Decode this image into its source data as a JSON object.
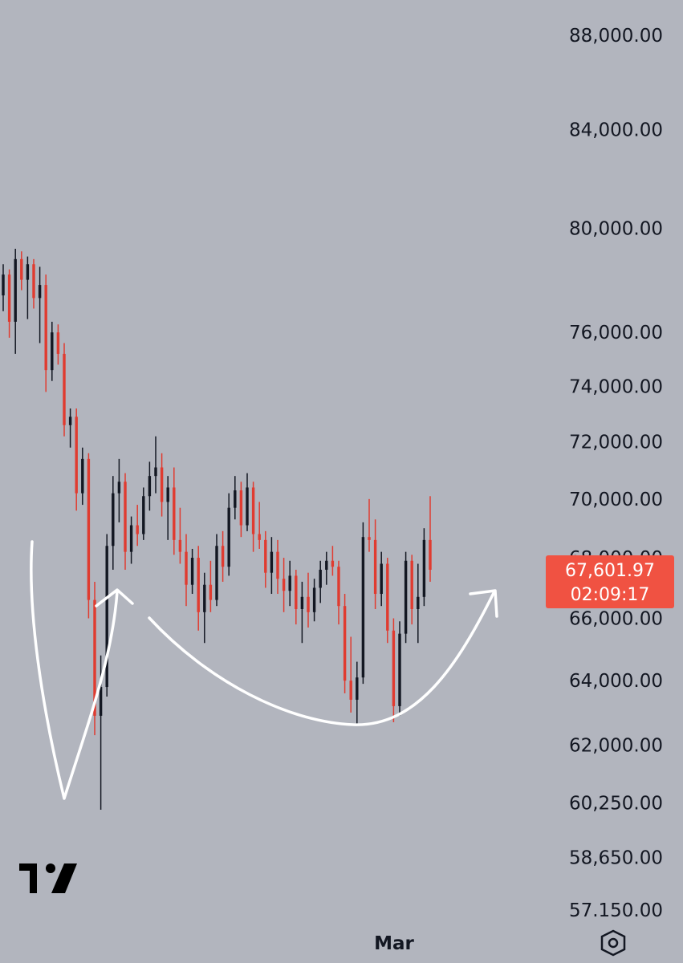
{
  "chart_data": {
    "type": "candlestick",
    "y_axis": {
      "scale": "log",
      "tick_labels": [
        "88,000.00",
        "84,000.00",
        "80,000.00",
        "76,000.00",
        "74,000.00",
        "72,000.00",
        "70,000.00",
        "68,000.00",
        "66,000.00",
        "64,000.00",
        "62,000.00",
        "60,250.00",
        "58,650.00",
        "57.150.00"
      ],
      "tick_values": [
        88000,
        84000,
        80000,
        76000,
        74000,
        72000,
        70000,
        68000,
        66000,
        64000,
        62000,
        60250,
        58650,
        57150
      ]
    },
    "x_axis": {
      "tick_labels": [
        "Mar"
      ]
    },
    "grid": false,
    "last_price": {
      "value": "67,601.97",
      "countdown": "02:09:17"
    },
    "colors": {
      "up": "#131722",
      "down": "#e03b30",
      "badge": "#f05242",
      "annotation": "#ffffff"
    },
    "candles_ohlc": [
      [
        77400,
        78600,
        76800,
        78200
      ],
      [
        78200,
        78400,
        75800,
        76400
      ],
      [
        76400,
        79200,
        75200,
        78800
      ],
      [
        78800,
        79100,
        77600,
        78000
      ],
      [
        78000,
        78900,
        76500,
        78600
      ],
      [
        78600,
        78800,
        76900,
        77300
      ],
      [
        77300,
        78500,
        75600,
        77800
      ],
      [
        77800,
        78200,
        73800,
        74600
      ],
      [
        74600,
        76400,
        74200,
        76000
      ],
      [
        76000,
        76300,
        74800,
        75200
      ],
      [
        75200,
        75600,
        72200,
        72600
      ],
      [
        72600,
        73200,
        71800,
        72900
      ],
      [
        72900,
        73200,
        69600,
        70200
      ],
      [
        70200,
        71800,
        69800,
        71400
      ],
      [
        71400,
        71600,
        66000,
        66600
      ],
      [
        66600,
        67200,
        62300,
        62900
      ],
      [
        62900,
        64800,
        60050,
        63800
      ],
      [
        63800,
        68800,
        63500,
        68400
      ],
      [
        68400,
        70800,
        67600,
        70200
      ],
      [
        70200,
        71400,
        69200,
        70600
      ],
      [
        70600,
        70900,
        67600,
        68200
      ],
      [
        68200,
        69400,
        67800,
        69100
      ],
      [
        69100,
        69800,
        68400,
        68800
      ],
      [
        68800,
        70400,
        68600,
        70100
      ],
      [
        70100,
        71300,
        69600,
        70800
      ],
      [
        70800,
        72200,
        70200,
        71100
      ],
      [
        71100,
        71600,
        69400,
        69900
      ],
      [
        69900,
        70800,
        68600,
        70400
      ],
      [
        70400,
        71100,
        68100,
        68600
      ],
      [
        68600,
        69700,
        67800,
        68200
      ],
      [
        68200,
        68800,
        66400,
        67100
      ],
      [
        67100,
        68300,
        66800,
        68000
      ],
      [
        68000,
        68400,
        65600,
        66200
      ],
      [
        66200,
        67500,
        65200,
        67100
      ],
      [
        67100,
        67900,
        66200,
        66600
      ],
      [
        66600,
        68800,
        66400,
        68400
      ],
      [
        68400,
        68900,
        67200,
        67700
      ],
      [
        67700,
        70200,
        67400,
        69700
      ],
      [
        69700,
        70800,
        69300,
        70300
      ],
      [
        70300,
        70600,
        68700,
        69100
      ],
      [
        69100,
        70900,
        68900,
        70400
      ],
      [
        70400,
        70600,
        68200,
        68800
      ],
      [
        68800,
        69900,
        68300,
        68600
      ],
      [
        68600,
        68900,
        67000,
        67500
      ],
      [
        67500,
        68700,
        66800,
        68200
      ],
      [
        68200,
        68600,
        66800,
        67300
      ],
      [
        67300,
        68000,
        66200,
        66900
      ],
      [
        66900,
        67900,
        66400,
        67400
      ],
      [
        67400,
        67600,
        65800,
        66300
      ],
      [
        66300,
        67200,
        65200,
        66700
      ],
      [
        66700,
        67500,
        65700,
        66200
      ],
      [
        66200,
        67300,
        65900,
        67000
      ],
      [
        67000,
        67900,
        66500,
        67600
      ],
      [
        67600,
        68200,
        67100,
        67900
      ],
      [
        67900,
        68400,
        67400,
        67700
      ],
      [
        67700,
        67900,
        65800,
        66400
      ],
      [
        66400,
        66800,
        63600,
        64000
      ],
      [
        64000,
        65400,
        63000,
        63400
      ],
      [
        63400,
        64600,
        62600,
        64100
      ],
      [
        64100,
        69200,
        63900,
        68700
      ],
      [
        68700,
        70000,
        68200,
        68600
      ],
      [
        68600,
        69300,
        66300,
        66800
      ],
      [
        66800,
        68200,
        66400,
        67800
      ],
      [
        67800,
        68000,
        65200,
        65600
      ],
      [
        65600,
        66000,
        62700,
        63200
      ],
      [
        63200,
        65900,
        62900,
        65500
      ],
      [
        65500,
        68200,
        65200,
        67900
      ],
      [
        67900,
        68100,
        65800,
        66300
      ],
      [
        66300,
        67800,
        65200,
        66700
      ],
      [
        66700,
        69000,
        66400,
        68600
      ],
      [
        68600,
        70100,
        67200,
        67600
      ]
    ]
  }
}
